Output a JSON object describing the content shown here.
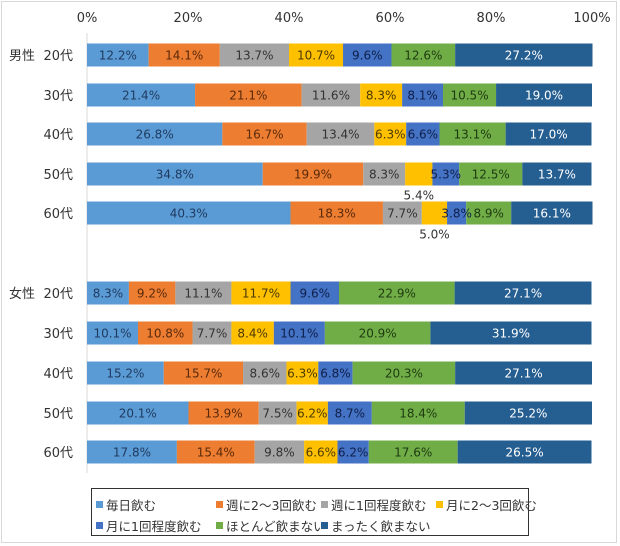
{
  "chart_data": {
    "type": "bar",
    "stacked": true,
    "orientation": "horizontal",
    "title": "",
    "xlabel": "",
    "ylabel": "",
    "xlim": [
      0,
      100
    ],
    "x_ticks": [
      "0%",
      "20%",
      "40%",
      "60%",
      "80%",
      "100%"
    ],
    "grid": false,
    "legend_position": "bottom",
    "groups": [
      {
        "label": "男性",
        "categories": [
          "20代",
          "30代",
          "40代",
          "50代",
          "60代"
        ]
      },
      {
        "label": "女性",
        "categories": [
          "20代",
          "30代",
          "40代",
          "50代",
          "60代"
        ]
      }
    ],
    "series": [
      {
        "name": "毎日飲む",
        "color": "#5B9BD5",
        "label_color": "#1f3a5f",
        "values": [
          12.2,
          21.4,
          26.8,
          34.8,
          40.3,
          8.3,
          10.1,
          15.2,
          20.1,
          17.8
        ],
        "labels": [
          "12.2%",
          "21.4%",
          "26.8%",
          "34.8%",
          "40.3%",
          "8.3%",
          "10.1%",
          "15.2%",
          "20.1%",
          "17.8%"
        ]
      },
      {
        "name": "週に2～3回飲む",
        "color": "#ED7D31",
        "label_color": "#5a2a0a",
        "values": [
          14.1,
          21.1,
          16.7,
          19.9,
          18.3,
          9.2,
          10.8,
          15.7,
          13.9,
          15.4
        ],
        "labels": [
          "14.1%",
          "21.1%",
          "16.7%",
          "19.9%",
          "18.3%",
          "9.2%",
          "10.8%",
          "15.7%",
          "13.9%",
          "15.4%"
        ]
      },
      {
        "name": "週に1回程度飲む",
        "color": "#A5A5A5",
        "label_color": "#333333",
        "values": [
          13.7,
          11.6,
          13.4,
          8.3,
          7.7,
          11.1,
          7.7,
          8.6,
          7.5,
          9.8
        ],
        "labels": [
          "13.7%",
          "11.6%",
          "13.4%",
          "8.3%",
          "7.7%",
          "11.1%",
          "7.7%",
          "8.6%",
          "7.5%",
          "9.8%"
        ]
      },
      {
        "name": "月に2～3回飲む",
        "color": "#FFC000",
        "label_color": "#4a3a00",
        "values": [
          10.7,
          8.3,
          6.3,
          5.4,
          5.0,
          11.7,
          8.4,
          6.3,
          6.2,
          6.6
        ],
        "labels": [
          "10.7%",
          "8.3%",
          "6.3%",
          "5.4%",
          "5.0%",
          "11.7%",
          "8.4%",
          "6.3%",
          "6.2%",
          "6.6%"
        ],
        "label_below": [
          false,
          false,
          false,
          true,
          true,
          false,
          false,
          false,
          false,
          false
        ]
      },
      {
        "name": "月に1回程度飲む",
        "color": "#4472C4",
        "label_color": "#0f1f4a",
        "values": [
          9.6,
          8.1,
          6.6,
          5.3,
          3.8,
          9.6,
          10.1,
          6.8,
          8.7,
          6.2
        ],
        "labels": [
          "9.6%",
          "8.1%",
          "6.6%",
          "5.3%",
          "3.8%",
          "9.6%",
          "10.1%",
          "6.8%",
          "8.7%",
          "6.2%"
        ]
      },
      {
        "name": "ほとんど飲まない",
        "color": "#70AD47",
        "label_color": "#1e3a10",
        "values": [
          12.6,
          10.5,
          13.1,
          12.5,
          8.9,
          22.9,
          20.9,
          20.3,
          18.4,
          17.6
        ],
        "labels": [
          "12.6%",
          "10.5%",
          "13.1%",
          "12.5%",
          "8.9%",
          "22.9%",
          "20.9%",
          "20.3%",
          "18.4%",
          "17.6%"
        ]
      },
      {
        "name": "まったく飲まない",
        "color": "#255E91",
        "label_color": "#ffffff",
        "values": [
          27.2,
          19.0,
          17.0,
          13.7,
          16.1,
          27.1,
          31.9,
          27.1,
          25.2,
          26.5
        ],
        "labels": [
          "27.2%",
          "19.0%",
          "17.0%",
          "13.7%",
          "16.1%",
          "27.1%",
          "31.9%",
          "27.1%",
          "25.2%",
          "26.5%"
        ]
      }
    ]
  }
}
